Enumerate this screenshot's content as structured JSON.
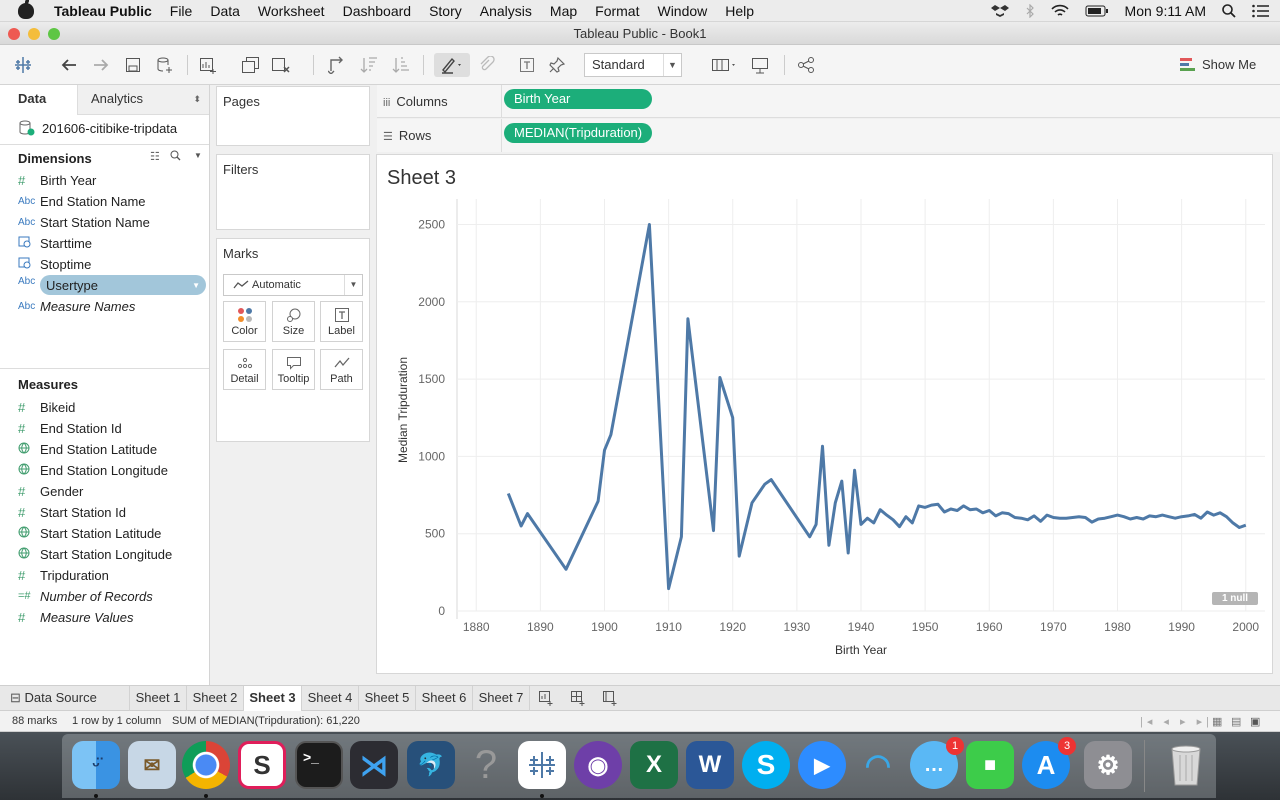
{
  "menubar": {
    "app": "Tableau Public",
    "items": [
      "File",
      "Data",
      "Worksheet",
      "Dashboard",
      "Story",
      "Analysis",
      "Map",
      "Format",
      "Window",
      "Help"
    ],
    "clock": "Mon 9:11 AM"
  },
  "window": {
    "title": "Tableau Public - Book1"
  },
  "toolbar": {
    "fit": "Standard",
    "show_me": "Show Me"
  },
  "datapane": {
    "tab_data": "Data",
    "tab_analytics": "Analytics",
    "datasource": "201606-citibike-tripdata",
    "dimensions_label": "Dimensions",
    "dimensions": [
      {
        "type": "#",
        "name": "Birth Year"
      },
      {
        "type": "Abc",
        "name": "End Station Name"
      },
      {
        "type": "Abc",
        "name": "Start Station Name"
      },
      {
        "type": "date",
        "name": "Starttime"
      },
      {
        "type": "date",
        "name": "Stoptime"
      },
      {
        "type": "Abc",
        "name": "Usertype"
      },
      {
        "type": "Abc",
        "name": "Measure Names"
      }
    ],
    "measures_label": "Measures",
    "measures": [
      {
        "type": "#",
        "name": "Bikeid"
      },
      {
        "type": "#",
        "name": "End Station Id"
      },
      {
        "type": "geo",
        "name": "End Station Latitude"
      },
      {
        "type": "geo",
        "name": "End Station Longitude"
      },
      {
        "type": "#",
        "name": "Gender"
      },
      {
        "type": "#",
        "name": "Start Station Id"
      },
      {
        "type": "geo",
        "name": "Start Station Latitude"
      },
      {
        "type": "geo",
        "name": "Start Station Longitude"
      },
      {
        "type": "#",
        "name": "Tripduration"
      },
      {
        "type": "=#",
        "name": "Number of Records"
      },
      {
        "type": "#",
        "name": "Measure Values"
      }
    ]
  },
  "cards": {
    "pages": "Pages",
    "filters": "Filters",
    "marks": "Marks",
    "mark_type": "Automatic",
    "mark_buttons": [
      "Color",
      "Size",
      "Label",
      "Detail",
      "Tooltip",
      "Path"
    ]
  },
  "shelves": {
    "columns_label": "Columns",
    "columns_pill": "Birth Year",
    "rows_label": "Rows",
    "rows_pill": "MEDIAN(Tripduration)"
  },
  "sheet_title": "Sheet 3",
  "null_badge": "1 null",
  "chart_data": {
    "type": "line",
    "title": "Sheet 3",
    "xlabel": "Birth Year",
    "ylabel": "Median Tripduration",
    "xlim": [
      1877,
      2003
    ],
    "ylim": [
      0,
      2600
    ],
    "x_ticks": [
      1880,
      1890,
      1900,
      1910,
      1920,
      1930,
      1940,
      1950,
      1960,
      1970,
      1980,
      1990,
      2000
    ],
    "y_ticks": [
      0,
      500,
      1000,
      1500,
      2000,
      2500
    ],
    "color": "#4e79a7",
    "x": [
      1885,
      1887,
      1888,
      1894,
      1899,
      1900,
      1901,
      1907,
      1910,
      1912,
      1913,
      1917,
      1918,
      1920,
      1921,
      1923,
      1925,
      1926,
      1932,
      1933,
      1934,
      1935,
      1936,
      1937,
      1938,
      1939,
      1940,
      1941,
      1942,
      1943,
      1944,
      1945,
      1946,
      1947,
      1948,
      1949,
      1950,
      1951,
      1952,
      1953,
      1954,
      1955,
      1956,
      1957,
      1958,
      1959,
      1960,
      1961,
      1962,
      1963,
      1964,
      1965,
      1966,
      1967,
      1968,
      1969,
      1970,
      1971,
      1972,
      1973,
      1974,
      1975,
      1976,
      1977,
      1978,
      1979,
      1980,
      1981,
      1982,
      1983,
      1984,
      1985,
      1986,
      1987,
      1988,
      1989,
      1990,
      1991,
      1992,
      1993,
      1994,
      1995,
      1996,
      1997,
      1998,
      1999,
      2000
    ],
    "values": [
      760,
      550,
      630,
      270,
      710,
      1040,
      1140,
      2500,
      145,
      480,
      1890,
      520,
      1510,
      1250,
      355,
      700,
      820,
      850,
      480,
      560,
      1065,
      425,
      700,
      840,
      375,
      910,
      560,
      600,
      570,
      655,
      620,
      590,
      545,
      610,
      570,
      680,
      670,
      685,
      690,
      640,
      660,
      650,
      680,
      655,
      660,
      635,
      650,
      615,
      635,
      630,
      605,
      600,
      590,
      615,
      580,
      620,
      605,
      600,
      600,
      605,
      610,
      605,
      575,
      595,
      600,
      610,
      620,
      610,
      595,
      605,
      595,
      615,
      610,
      620,
      610,
      600,
      610,
      615,
      625,
      600,
      640,
      620,
      635,
      610,
      570,
      540,
      555
    ]
  }
}
